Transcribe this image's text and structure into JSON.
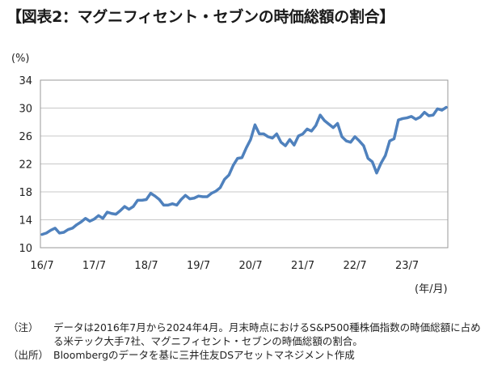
{
  "title": "【図表2：マグニフィセント・セブンの時価総額の割合】",
  "notes": [
    {
      "label": "（注）",
      "text": "データは2016年7月から2024年4月。月末時点におけるS&P500種株価指数の時価総額に占める米テック大手7社、マグニフィセント・セブンの時価総額の割合。"
    },
    {
      "label": "（出所）",
      "text": "Bloombergのデータを基に三井住友DSアセットマネジメント作成"
    }
  ],
  "chart_data": {
    "type": "line",
    "y_unit": "(%)",
    "x_unit": "(年/月)",
    "ylim": [
      10,
      34
    ],
    "yticks": [
      "10",
      "14",
      "18",
      "22",
      "26",
      "30",
      "34"
    ],
    "xticks": [
      "16/7",
      "17/7",
      "18/7",
      "19/7",
      "20/7",
      "21/7",
      "22/7",
      "23/7"
    ],
    "grid": "horizontal",
    "line_color": "#4f81bd",
    "series": [
      {
        "values": [
          11.9,
          12.1,
          12.5,
          12.8,
          12.1,
          12.2,
          12.6,
          12.8,
          13.3,
          13.7,
          14.2,
          13.8,
          14.1,
          14.6,
          14.2,
          15.1,
          14.9,
          14.8,
          15.3,
          15.9,
          15.5,
          15.9,
          16.8,
          16.8,
          16.9,
          17.8,
          17.4,
          16.9,
          16.1,
          16.1,
          16.3,
          16.1,
          16.9,
          17.5,
          17.0,
          17.1,
          17.4,
          17.3,
          17.3,
          17.8,
          18.1,
          18.6,
          19.8,
          20.4,
          21.8,
          22.8,
          22.9,
          24.3,
          25.5,
          27.6,
          26.3,
          26.3,
          25.9,
          25.7,
          26.3,
          25.1,
          24.6,
          25.5,
          24.7,
          26.0,
          26.3,
          27.0,
          26.7,
          27.5,
          29.0,
          28.2,
          27.7,
          27.2,
          27.8,
          25.9,
          25.3,
          25.1,
          25.9,
          25.3,
          24.6,
          22.8,
          22.3,
          20.7,
          22.1,
          23.2,
          25.3,
          25.6,
          28.3,
          28.5,
          28.6,
          28.8,
          28.4,
          28.7,
          29.4,
          28.9,
          29.0,
          29.9,
          29.7,
          30.1
        ]
      }
    ]
  }
}
